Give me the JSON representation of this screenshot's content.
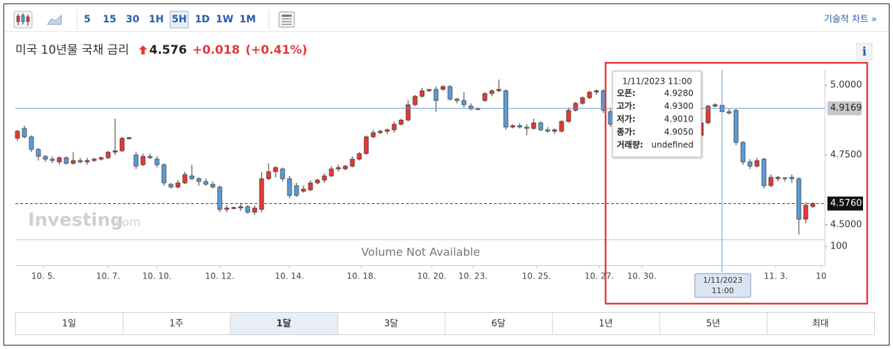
{
  "toolbar": {
    "intervals": [
      "5",
      "15",
      "30",
      "1H",
      "5H",
      "1D",
      "1W",
      "1M"
    ],
    "active_interval": 4,
    "link": "기술적 차트 »"
  },
  "header": {
    "title": "미국 10년물 국채 금리",
    "price": "4.576",
    "change": "+0.018",
    "change_percent": "(+0.41%)",
    "info": "i"
  },
  "chart_data": {
    "type": "candlestick",
    "up_color": "#e53935",
    "down_color": "#5b9bd5",
    "xlim": [
      -0.3,
      115.7
    ],
    "xticks": [
      {
        "value": 3.7,
        "label": "10. 5."
      },
      {
        "value": 13,
        "label": "10. 7."
      },
      {
        "value": 20,
        "label": "10. 10."
      },
      {
        "value": 29,
        "label": "10. 12."
      },
      {
        "value": 39,
        "label": "10. 14."
      },
      {
        "value": 49.3,
        "label": "10. 18."
      },
      {
        "value": 59.4,
        "label": "10. 20."
      },
      {
        "value": 65.3,
        "label": "10. 23."
      },
      {
        "value": 74.4,
        "label": "10. 25."
      },
      {
        "value": 83.4,
        "label": "10. 27."
      },
      {
        "value": 89.5,
        "label": "10. 30."
      },
      {
        "value": 108.7,
        "label": "11. 3."
      },
      {
        "value": 115.2,
        "label": "10"
      }
    ],
    "ylim": [
      4.45,
      5.05
    ],
    "yticks": [
      {
        "value": 5,
        "label": "5.0000"
      },
      {
        "value": 4.75,
        "label": "4.7500"
      },
      {
        "value": 4.5,
        "label": "4.5000"
      }
    ],
    "grid": false,
    "last_price": {
      "value": 4.576,
      "label": "4.5760"
    },
    "crosshair": {
      "index": 101,
      "price": {
        "value": 4.9169,
        "label": "4.9169"
      },
      "date": "1/11/2023",
      "time": "11:00"
    },
    "watermark": [
      "Investing",
      ".com"
    ],
    "volume": {
      "ylim": [
        0,
        137
      ],
      "yticks": [
        100
      ],
      "message": "Volume Not Available"
    },
    "candles": [
      {
        "open": 4.81,
        "high": 4.84,
        "low": 4.8,
        "close": 4.835
      },
      {
        "open": 4.845,
        "high": 4.855,
        "low": 4.81,
        "close": 4.815
      },
      {
        "open": 4.815,
        "high": 4.82,
        "low": 4.76,
        "close": 4.77
      },
      {
        "open": 4.77,
        "high": 4.775,
        "low": 4.73,
        "close": 4.745
      },
      {
        "open": 4.745,
        "high": 4.75,
        "low": 4.725,
        "close": 4.735
      },
      {
        "open": 4.735,
        "high": 4.745,
        "low": 4.72,
        "close": 4.73
      },
      {
        "open": 4.725,
        "high": 4.745,
        "low": 4.715,
        "close": 4.74
      },
      {
        "open": 4.74,
        "high": 4.745,
        "low": 4.715,
        "close": 4.72
      },
      {
        "open": 4.72,
        "high": 4.76,
        "low": 4.715,
        "close": 4.73
      },
      {
        "open": 4.73,
        "high": 4.74,
        "low": 4.72,
        "close": 4.725
      },
      {
        "open": 4.725,
        "high": 4.74,
        "low": 4.715,
        "close": 4.73
      },
      {
        "open": 4.73,
        "high": 4.74,
        "low": 4.725,
        "close": 4.735
      },
      {
        "open": 4.735,
        "high": 4.745,
        "low": 4.73,
        "close": 4.74
      },
      {
        "open": 4.74,
        "high": 4.765,
        "low": 4.735,
        "close": 4.76
      },
      {
        "open": 4.76,
        "high": 4.88,
        "low": 4.75,
        "close": 4.765
      },
      {
        "open": 4.765,
        "high": 4.815,
        "low": 4.76,
        "close": 4.81
      },
      {
        "open": 4.808,
        "high": 4.815,
        "low": 4.805,
        "close": 4.812
      },
      {
        "open": 4.75,
        "high": 4.76,
        "low": 4.7,
        "close": 4.71
      },
      {
        "open": 4.715,
        "high": 4.755,
        "low": 4.71,
        "close": 4.745
      },
      {
        "open": 4.745,
        "high": 4.755,
        "low": 4.735,
        "close": 4.74
      },
      {
        "open": 4.735,
        "high": 4.745,
        "low": 4.705,
        "close": 4.715
      },
      {
        "open": 4.715,
        "high": 4.72,
        "low": 4.64,
        "close": 4.65
      },
      {
        "open": 4.645,
        "high": 4.65,
        "low": 4.63,
        "close": 4.635
      },
      {
        "open": 4.635,
        "high": 4.66,
        "low": 4.63,
        "close": 4.65
      },
      {
        "open": 4.65,
        "high": 4.69,
        "low": 4.645,
        "close": 4.68
      },
      {
        "open": 4.675,
        "high": 4.715,
        "low": 4.66,
        "close": 4.665
      },
      {
        "open": 4.665,
        "high": 4.67,
        "low": 4.64,
        "close": 4.655
      },
      {
        "open": 4.655,
        "high": 4.665,
        "low": 4.64,
        "close": 4.645
      },
      {
        "open": 4.645,
        "high": 4.655,
        "low": 4.63,
        "close": 4.635
      },
      {
        "open": 4.635,
        "high": 4.64,
        "low": 4.545,
        "close": 4.555
      },
      {
        "open": 4.555,
        "high": 4.57,
        "low": 4.545,
        "close": 4.56
      },
      {
        "open": 4.558,
        "high": 4.565,
        "low": 4.555,
        "close": 4.562
      },
      {
        "open": 4.56,
        "high": 4.575,
        "low": 4.55,
        "close": 4.565
      },
      {
        "open": 4.565,
        "high": 4.57,
        "low": 4.54,
        "close": 4.545
      },
      {
        "open": 4.545,
        "high": 4.57,
        "low": 4.535,
        "close": 4.56
      },
      {
        "open": 4.555,
        "high": 4.69,
        "low": 4.545,
        "close": 4.665
      },
      {
        "open": 4.665,
        "high": 4.72,
        "low": 4.66,
        "close": 4.69
      },
      {
        "open": 4.69,
        "high": 4.71,
        "low": 4.67,
        "close": 4.705
      },
      {
        "open": 4.7,
        "high": 4.705,
        "low": 4.655,
        "close": 4.665
      },
      {
        "open": 4.665,
        "high": 4.675,
        "low": 4.595,
        "close": 4.605
      },
      {
        "open": 4.64,
        "high": 4.65,
        "low": 4.6,
        "close": 4.605
      },
      {
        "open": 4.62,
        "high": 4.64,
        "low": 4.615,
        "close": 4.628
      },
      {
        "open": 4.625,
        "high": 4.66,
        "low": 4.62,
        "close": 4.65
      },
      {
        "open": 4.65,
        "high": 4.665,
        "low": 4.645,
        "close": 4.66
      },
      {
        "open": 4.66,
        "high": 4.685,
        "low": 4.65,
        "close": 4.675
      },
      {
        "open": 4.675,
        "high": 4.71,
        "low": 4.67,
        "close": 4.7
      },
      {
        "open": 4.7,
        "high": 4.715,
        "low": 4.69,
        "close": 4.705
      },
      {
        "open": 4.7,
        "high": 4.715,
        "low": 4.695,
        "close": 4.71
      },
      {
        "open": 4.71,
        "high": 4.745,
        "low": 4.705,
        "close": 4.735
      },
      {
        "open": 4.735,
        "high": 4.76,
        "low": 4.73,
        "close": 4.755
      },
      {
        "open": 4.755,
        "high": 4.82,
        "low": 4.75,
        "close": 4.815
      },
      {
        "open": 4.815,
        "high": 4.84,
        "low": 4.81,
        "close": 4.83
      },
      {
        "open": 4.83,
        "high": 4.84,
        "low": 4.825,
        "close": 4.835
      },
      {
        "open": 4.835,
        "high": 4.845,
        "low": 4.825,
        "close": 4.84
      },
      {
        "open": 4.84,
        "high": 4.87,
        "low": 4.83,
        "close": 4.86
      },
      {
        "open": 4.86,
        "high": 4.88,
        "low": 4.855,
        "close": 4.875
      },
      {
        "open": 4.875,
        "high": 4.945,
        "low": 4.87,
        "close": 4.93
      },
      {
        "open": 4.93,
        "high": 4.965,
        "low": 4.925,
        "close": 4.96
      },
      {
        "open": 4.96,
        "high": 4.99,
        "low": 4.955,
        "close": 4.98
      },
      {
        "open": 4.98,
        "high": 4.985,
        "low": 4.975,
        "close": 4.985
      },
      {
        "open": 4.985,
        "high": 4.995,
        "low": 4.905,
        "close": 4.945
      },
      {
        "open": 4.985,
        "high": 5.0,
        "low": 4.98,
        "close": 4.995
      },
      {
        "open": 4.995,
        "high": 5.0,
        "low": 4.945,
        "close": 4.95
      },
      {
        "open": 4.95,
        "high": 4.955,
        "low": 4.935,
        "close": 4.945
      },
      {
        "open": 4.945,
        "high": 4.975,
        "low": 4.92,
        "close": 4.93
      },
      {
        "open": 4.925,
        "high": 4.935,
        "low": 4.91,
        "close": 4.915
      },
      {
        "open": 4.913,
        "high": 4.92,
        "low": 4.91,
        "close": 4.917
      },
      {
        "open": 4.945,
        "high": 4.975,
        "low": 4.94,
        "close": 4.97
      },
      {
        "open": 4.97,
        "high": 4.985,
        "low": 4.96,
        "close": 4.98
      },
      {
        "open": 4.98,
        "high": 5.02,
        "low": 4.975,
        "close": 4.985
      },
      {
        "open": 4.98,
        "high": 4.985,
        "low": 4.84,
        "close": 4.85
      },
      {
        "open": 4.85,
        "high": 4.86,
        "low": 4.845,
        "close": 4.855
      },
      {
        "open": 4.855,
        "high": 4.865,
        "low": 4.845,
        "close": 4.85
      },
      {
        "open": 4.85,
        "high": 4.86,
        "low": 4.82,
        "close": 4.845
      },
      {
        "open": 4.845,
        "high": 4.88,
        "low": 4.84,
        "close": 4.865
      },
      {
        "open": 4.865,
        "high": 4.87,
        "low": 4.835,
        "close": 4.84
      },
      {
        "open": 4.84,
        "high": 4.85,
        "low": 4.83,
        "close": 4.835
      },
      {
        "open": 4.835,
        "high": 4.845,
        "low": 4.825,
        "close": 4.84
      },
      {
        "open": 4.835,
        "high": 4.875,
        "low": 4.83,
        "close": 4.87
      },
      {
        "open": 4.87,
        "high": 4.92,
        "low": 4.865,
        "close": 4.91
      },
      {
        "open": 4.91,
        "high": 4.94,
        "low": 4.905,
        "close": 4.935
      },
      {
        "open": 4.935,
        "high": 4.96,
        "low": 4.93,
        "close": 4.955
      },
      {
        "open": 4.955,
        "high": 4.98,
        "low": 4.95,
        "close": 4.975
      },
      {
        "open": 4.975,
        "high": 4.985,
        "low": 4.965,
        "close": 4.98
      },
      {
        "open": 4.98,
        "high": 4.985,
        "low": 4.9,
        "close": 4.91
      },
      {
        "open": 4.905,
        "high": 4.915,
        "low": 4.85,
        "close": 4.86
      },
      null,
      null,
      null,
      null,
      null,
      null,
      null,
      null,
      null,
      null,
      null,
      null,
      {
        "open": 4.82,
        "high": 4.87,
        "low": 4.815,
        "close": 4.865
      },
      {
        "open": 4.865,
        "high": 4.93,
        "low": 4.86,
        "close": 4.925
      },
      {
        "open": 4.925,
        "high": 4.935,
        "low": 4.92,
        "close": 4.93
      },
      {
        "open": 4.928,
        "high": 4.93,
        "low": 4.901,
        "close": 4.905
      },
      {
        "open": 4.905,
        "high": 4.915,
        "low": 4.895,
        "close": 4.9
      },
      {
        "open": 4.91,
        "high": 4.915,
        "low": 4.785,
        "close": 4.795
      },
      {
        "open": 4.795,
        "high": 4.8,
        "low": 4.715,
        "close": 4.725
      },
      {
        "open": 4.725,
        "high": 4.735,
        "low": 4.7,
        "close": 4.71
      },
      {
        "open": 4.71,
        "high": 4.74,
        "low": 4.705,
        "close": 4.73
      },
      {
        "open": 4.735,
        "high": 4.74,
        "low": 4.63,
        "close": 4.64
      },
      {
        "open": 4.64,
        "high": 4.68,
        "low": 4.635,
        "close": 4.67
      },
      {
        "open": 4.665,
        "high": 4.675,
        "low": 4.655,
        "close": 4.67
      },
      {
        "open": 4.668,
        "high": 4.67,
        "low": 4.655,
        "close": 4.665
      },
      {
        "open": 4.67,
        "high": 4.68,
        "low": 4.65,
        "close": 4.665
      },
      {
        "open": 4.665,
        "high": 4.67,
        "low": 4.465,
        "close": 4.52
      },
      {
        "open": 4.52,
        "high": 4.58,
        "low": 4.505,
        "close": 4.57
      },
      {
        "open": 4.565,
        "high": 4.58,
        "low": 4.56,
        "close": 4.576
      }
    ]
  },
  "tooltip": {
    "title": "1/11/2023 11:00",
    "rows": [
      [
        "오픈:",
        "4.9280"
      ],
      [
        "고가:",
        "4.9300"
      ],
      [
        "저가:",
        "4.9010"
      ],
      [
        "종가:",
        "4.9050"
      ],
      [
        "거래량:",
        "undefined"
      ]
    ]
  },
  "periods": {
    "items": [
      "1일",
      "1주",
      "1달",
      "3달",
      "6달",
      "1년",
      "5년",
      "최대"
    ],
    "active": 2
  }
}
